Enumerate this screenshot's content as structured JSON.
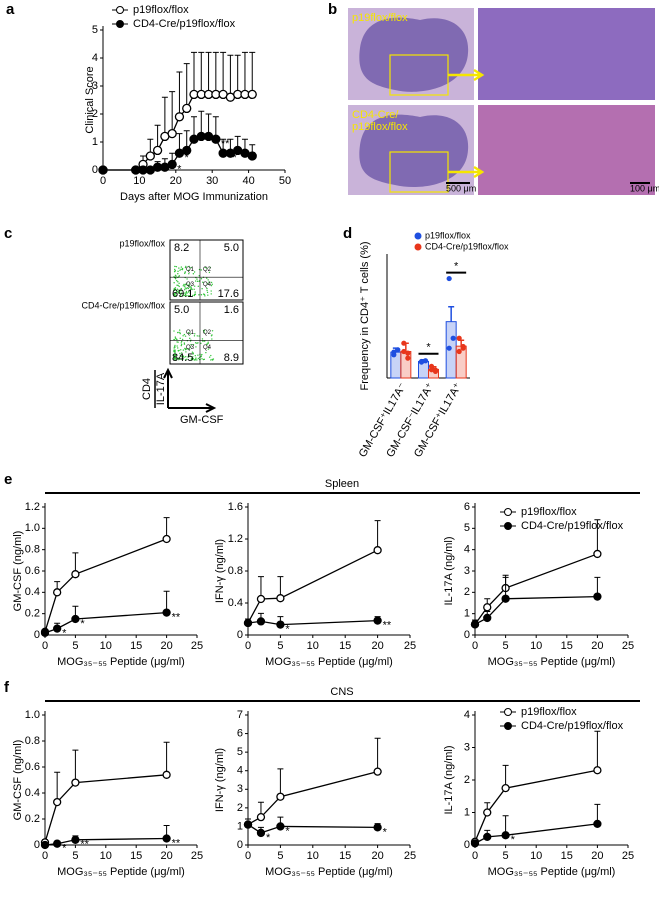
{
  "chart_data": [
    {
      "type": "line",
      "panel": "a",
      "xlabel": "Days after MOG Immunization",
      "ylabel": "Clinical Score",
      "x": [
        0,
        9,
        11,
        13,
        15,
        17,
        19,
        21,
        23,
        25,
        27,
        29,
        31,
        33,
        35,
        37,
        39,
        41
      ],
      "xlim": [
        0,
        50
      ],
      "xticks": [
        0,
        10,
        20,
        30,
        40,
        50
      ],
      "ylim": [
        0,
        5
      ],
      "yticks": [
        0,
        1,
        2,
        3,
        4,
        5
      ],
      "legend": true,
      "series": [
        {
          "name": "p19flox/flox",
          "marker": "open",
          "color": "#000000",
          "values": [
            0,
            0,
            0.2,
            0.5,
            0.7,
            1.2,
            1.3,
            1.9,
            2.2,
            2.7,
            2.7,
            2.7,
            2.7,
            2.7,
            2.6,
            2.7,
            2.7,
            2.7
          ],
          "errors": [
            0,
            0,
            0.3,
            0.6,
            0.9,
            1.4,
            1.5,
            1.6,
            1.6,
            1.5,
            1.5,
            1.5,
            1.5,
            1.5,
            1.5,
            1.4,
            1.5,
            1.5
          ]
        },
        {
          "name": "CD4-Cre/p19flox/flox",
          "marker": "filled",
          "color": "#000000",
          "values": [
            0,
            0,
            0,
            0,
            0.1,
            0.1,
            0.2,
            0.6,
            0.7,
            1.1,
            1.2,
            1.2,
            1.1,
            0.6,
            0.6,
            0.7,
            0.6,
            0.5
          ],
          "errors": [
            0,
            0,
            0,
            0,
            0.2,
            0.3,
            0.4,
            0.7,
            0.7,
            0.8,
            0.9,
            0.8,
            0.8,
            0.5,
            0.5,
            0.5,
            0.5,
            0.4
          ],
          "significance": [
            null,
            null,
            null,
            null,
            null,
            null,
            "*",
            "*",
            null,
            null,
            null,
            null,
            "**",
            "**",
            null,
            "*",
            "*",
            null
          ]
        }
      ]
    },
    {
      "type": "micrograph",
      "panel": "b",
      "rows": [
        {
          "label": [
            "p19flox/flox"
          ]
        },
        {
          "label": [
            "CD4-Cre/",
            "p19flox/flox"
          ]
        }
      ],
      "scale_bars": [
        "500 μm",
        "100 μm"
      ]
    },
    {
      "type": "flow",
      "panel": "c",
      "quadrant_names": [
        "Q1",
        "Q2",
        "Q3",
        "Q4"
      ],
      "samples": [
        {
          "name": "p19flox/flox",
          "quadrants": [
            "8.2",
            "5.0",
            "69.1",
            "17.6"
          ]
        },
        {
          "name": "CD4-Cre/p19flox/flox",
          "quadrants": [
            "5.0",
            "1.6",
            "84.5",
            "8.9"
          ]
        }
      ],
      "ylabel": [
        "CD4",
        "IL-17A"
      ],
      "xlabel": "GM-CSF"
    },
    {
      "type": "dotbar",
      "panel": "d",
      "ylabel": "Frequency in CD4⁺ T cells (%)",
      "ylim": [
        0,
        35
      ],
      "categories": [
        "GM-CSF⁺IL17A⁻",
        "GM-CSF⁻IL17A⁺",
        "GM-CSF⁺IL17A⁺"
      ],
      "significance": [
        null,
        "*",
        "*"
      ],
      "series": [
        {
          "name": "p19flox/flox",
          "color": "#1f4fe0",
          "values": [
            7.8,
            5.0,
            17.0
          ],
          "errors": [
            1.2,
            0.5,
            4.5
          ],
          "points": [
            [
              7,
              8.5,
              7.8
            ],
            [
              5,
              5.2,
              4.8
            ],
            [
              30,
              12,
              9
            ]
          ]
        },
        {
          "name": "CD4-Cre/p19flox/flox",
          "color": "#e8361b",
          "values": [
            8.0,
            2.6,
            9.6
          ],
          "errors": [
            2.5,
            0.8,
            1.8
          ],
          "points": [
            [
              10.5,
              6,
              8,
              7.5
            ],
            [
              3.5,
              2,
              2.5,
              2.4
            ],
            [
              12,
              9,
              8,
              9.5
            ]
          ]
        }
      ]
    },
    {
      "type": "line",
      "panel": "e",
      "section_title": "Spleen",
      "xlabel": "MOG₃₅₋₅₅ Peptide (μg/ml)",
      "ylabel": "GM-CSF (ng/ml)",
      "x": [
        0,
        2,
        5,
        20
      ],
      "xlim": [
        0,
        25
      ],
      "xticks": [
        0,
        5,
        10,
        15,
        20,
        25
      ],
      "ylim": [
        0,
        1.2
      ],
      "yticks": [
        0,
        0.2,
        0.4,
        0.6,
        0.8,
        {
          "value": 1,
          "label": "1.0"
        },
        1.2
      ],
      "legend": false,
      "series": [
        {
          "name": "p19flox/flox",
          "marker": "open",
          "color": "#000000",
          "values": [
            0.03,
            0.4,
            0.57,
            0.9
          ],
          "errors": [
            0.02,
            0.1,
            0.2,
            0.2
          ]
        },
        {
          "name": "CD4-Cre/p19flox/flox",
          "marker": "filled",
          "color": "#000000",
          "values": [
            0.02,
            0.06,
            0.15,
            0.21
          ],
          "errors": [
            0.01,
            0.05,
            0.12,
            0.2
          ],
          "significance": [
            null,
            "*",
            "*",
            "**"
          ]
        }
      ]
    },
    {
      "type": "line",
      "xlabel": "MOG₃₅₋₅₅ Peptide (μg/ml)",
      "ylabel": "IFN-γ (ng/ml)",
      "x": [
        0,
        2,
        5,
        20
      ],
      "xlim": [
        0,
        25
      ],
      "xticks": [
        0,
        5,
        10,
        15,
        20,
        25
      ],
      "ylim": [
        0,
        1.6
      ],
      "yticks": [
        0,
        0.4,
        0.8,
        1.2,
        1.6
      ],
      "legend": false,
      "series": [
        {
          "name": "p19flox/flox",
          "marker": "open",
          "color": "#000000",
          "values": [
            0.15,
            0.45,
            0.46,
            1.06
          ],
          "errors": [
            0.05,
            0.28,
            0.27,
            0.37
          ]
        },
        {
          "name": "CD4-Cre/p19flox/flox",
          "marker": "filled",
          "color": "#000000",
          "values": [
            0.15,
            0.17,
            0.13,
            0.18
          ],
          "errors": [
            0.05,
            0.1,
            0.1,
            0.05
          ],
          "significance": [
            null,
            null,
            "*",
            "**"
          ]
        }
      ]
    },
    {
      "type": "line",
      "xlabel": "MOG₃₅₋₅₅ Peptide (μg/ml)",
      "ylabel": "IL-17A (ng/ml)",
      "x": [
        0,
        2,
        5,
        20
      ],
      "xlim": [
        0,
        25
      ],
      "xticks": [
        0,
        5,
        10,
        15,
        20,
        25
      ],
      "ylim": [
        0,
        6
      ],
      "yticks": [
        0,
        1,
        2,
        3,
        4,
        5,
        6
      ],
      "legend": true,
      "series": [
        {
          "name": "p19flox/flox",
          "marker": "open",
          "color": "#000000",
          "values": [
            0.5,
            1.3,
            2.2,
            3.8
          ],
          "errors": [
            0.2,
            0.4,
            0.6,
            1.6
          ]
        },
        {
          "name": "CD4-Cre/p19flox/flox",
          "marker": "filled",
          "color": "#000000",
          "values": [
            0.5,
            0.8,
            1.7,
            1.8
          ],
          "errors": [
            0.2,
            0.3,
            1.0,
            0.9
          ]
        }
      ]
    },
    {
      "type": "line",
      "panel": "f",
      "section_title": "CNS",
      "xlabel": "MOG₃₅₋₅₅ Peptide (μg/ml)",
      "ylabel": "GM-CSF (ng/ml)",
      "x": [
        0,
        2,
        5,
        20
      ],
      "xlim": [
        0,
        25
      ],
      "xticks": [
        0,
        5,
        10,
        15,
        20,
        25
      ],
      "ylim": [
        0,
        1
      ],
      "yticks": [
        0,
        0.2,
        0.4,
        0.6,
        0.8,
        {
          "value": 1,
          "label": "1.0"
        }
      ],
      "legend": false,
      "series": [
        {
          "name": "p19flox/flox",
          "marker": "open",
          "color": "#000000",
          "values": [
            0.02,
            0.33,
            0.48,
            0.54
          ],
          "errors": [
            0.02,
            0.23,
            0.25,
            0.25
          ]
        },
        {
          "name": "CD4-Cre/p19flox/flox",
          "marker": "filled",
          "color": "#000000",
          "values": [
            0,
            0.01,
            0.04,
            0.05
          ],
          "errors": [
            0,
            0.02,
            0.03,
            0.1
          ],
          "significance": [
            null,
            "*",
            "**",
            "**"
          ]
        }
      ]
    },
    {
      "type": "line",
      "xlabel": "MOG₃₅₋₅₅ Peptide (μg/ml)",
      "ylabel": "IFN-γ (ng/ml)",
      "x": [
        0,
        2,
        5,
        20
      ],
      "xlim": [
        0,
        25
      ],
      "xticks": [
        0,
        5,
        10,
        15,
        20,
        25
      ],
      "ylim": [
        0,
        7
      ],
      "yticks": [
        0,
        1,
        2,
        3,
        4,
        5,
        6,
        7
      ],
      "legend": false,
      "series": [
        {
          "name": "p19flox/flox",
          "marker": "open",
          "color": "#000000",
          "values": [
            1.1,
            1.5,
            2.6,
            3.95
          ],
          "errors": [
            0.3,
            0.8,
            1.5,
            1.8
          ]
        },
        {
          "name": "CD4-Cre/p19flox/flox",
          "marker": "filled",
          "color": "#000000",
          "values": [
            1.1,
            0.65,
            1.0,
            0.95
          ],
          "errors": [
            0.3,
            0.3,
            0.5,
            0.2
          ],
          "significance": [
            null,
            "*",
            "*",
            "*"
          ]
        }
      ]
    },
    {
      "type": "line",
      "xlabel": "MOG₃₅₋₅₅ Peptide (μg/ml)",
      "ylabel": "IL-17A (ng/ml)",
      "x": [
        0,
        2,
        5,
        20
      ],
      "xlim": [
        0,
        25
      ],
      "xticks": [
        0,
        5,
        10,
        15,
        20,
        25
      ],
      "ylim": [
        0,
        4
      ],
      "yticks": [
        0,
        1,
        2,
        3,
        4
      ],
      "legend": true,
      "series": [
        {
          "name": "p19flox/flox",
          "marker": "open",
          "color": "#000000",
          "values": [
            0.1,
            1.0,
            1.75,
            2.3
          ],
          "errors": [
            0.05,
            0.3,
            0.7,
            1.2
          ]
        },
        {
          "name": "CD4-Cre/p19flox/flox",
          "marker": "filled",
          "color": "#000000",
          "values": [
            0.05,
            0.25,
            0.3,
            0.65
          ],
          "errors": [
            0.05,
            0.2,
            0.6,
            0.6
          ],
          "significance": [
            null,
            null,
            "*",
            null
          ]
        }
      ]
    }
  ]
}
